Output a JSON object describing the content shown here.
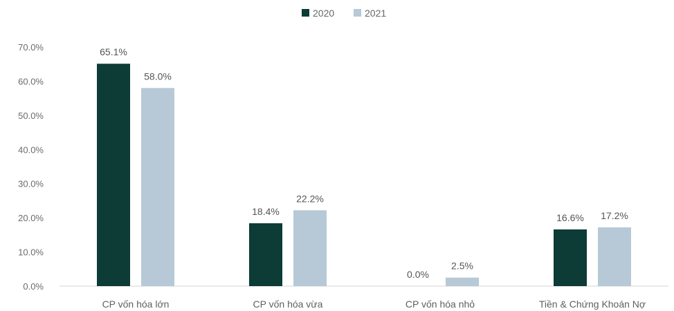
{
  "chart_data": {
    "type": "bar",
    "categories": [
      "CP vốn hóa lớn",
      "CP vốn hóa vừa",
      "CP vốn hóa nhỏ",
      "Tiền & Chứng Khoán Nợ"
    ],
    "series": [
      {
        "name": "2020",
        "values": [
          65.1,
          18.4,
          0.0,
          16.6
        ],
        "labels": [
          "65.1%",
          "18.4%",
          "0.0%",
          "16.6%"
        ],
        "color": "#0d3b36"
      },
      {
        "name": "2021",
        "values": [
          58.0,
          22.2,
          2.5,
          17.2
        ],
        "labels": [
          "58.0%",
          "22.2%",
          "2.5%",
          "17.2%"
        ],
        "color": "#b7c9d6"
      }
    ],
    "ylim": [
      0,
      70
    ],
    "yticks": [
      "0.0%",
      "10.0%",
      "20.0%",
      "30.0%",
      "40.0%",
      "50.0%",
      "60.0%",
      "70.0%"
    ],
    "legend_position": "top-center",
    "grid": false
  }
}
